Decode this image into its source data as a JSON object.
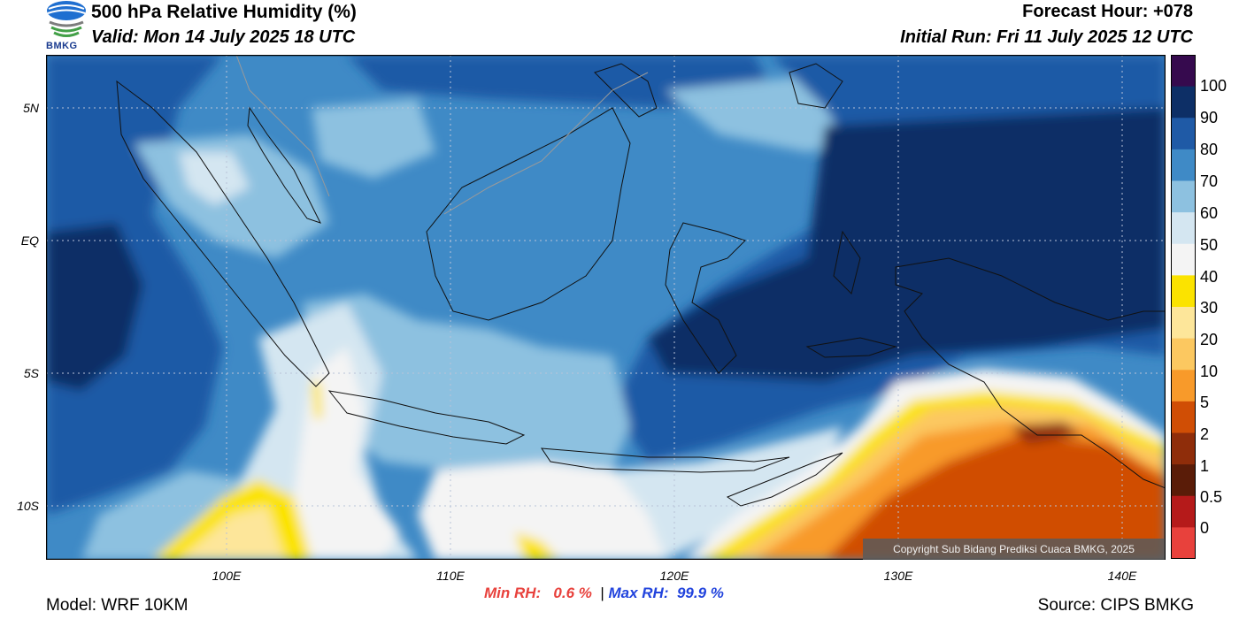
{
  "header": {
    "title": "500 hPa Relative Humidity (%)",
    "valid": "Valid: Mon 14 July 2025 18 UTC",
    "forecast_hour": "Forecast Hour: +078",
    "initial_run": "Initial Run: Fri 11 July 2025 12 UTC"
  },
  "logo": {
    "text": "BMKG"
  },
  "axes": {
    "lat_labels": [
      "5N",
      "EQ",
      "5S",
      "10S"
    ],
    "lon_labels": [
      "100E",
      "110E",
      "120E",
      "130E",
      "140E"
    ]
  },
  "colorbar": {
    "labels": [
      "100",
      "90",
      "80",
      "70",
      "60",
      "50",
      "40",
      "30",
      "20",
      "10",
      "5",
      "2",
      "1",
      "0.5",
      "0"
    ],
    "colors": [
      "#360a4e",
      "#0d2f66",
      "#1f5aa6",
      "#3f8ac6",
      "#8dc1e0",
      "#d4e6f1",
      "#f4f4f4",
      "#fbe300",
      "#fde69a",
      "#fcc860",
      "#f89a2a",
      "#d04e05",
      "#8f2d0a",
      "#5a1c08",
      "#b51a1a",
      "#e8413c"
    ]
  },
  "copyright": "Copyright Sub Bidang Prediksi Cuaca BMKG, 2025",
  "stats": {
    "min_label": "Min RH:",
    "min_value": "0.6 %",
    "separator": "|",
    "max_label": "Max RH:",
    "max_value": "99.9 %"
  },
  "footer": {
    "model": "Model: WRF 10KM",
    "source": "Source: CIPS BMKG"
  }
}
